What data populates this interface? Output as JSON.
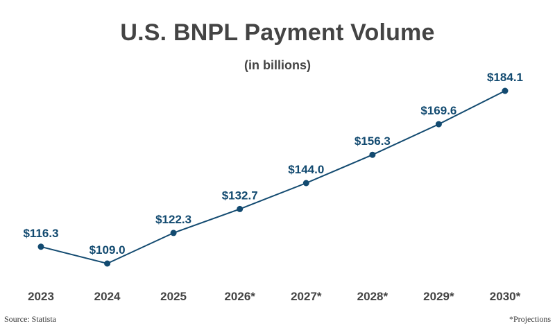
{
  "colors": {
    "line": "#124a70",
    "value_label": "#124a70",
    "tick_label": "#444444",
    "title": "#444444"
  },
  "footer": {
    "source": "Source: Statista",
    "note": "*Projections"
  },
  "chart_data": {
    "type": "line",
    "title": "U.S. BNPL Payment Volume",
    "subtitle": "(in billions)",
    "xlabel": "",
    "ylabel": "",
    "categories": [
      "2023",
      "2024",
      "2025",
      "2026*",
      "2027*",
      "2028*",
      "2029*",
      "2030*"
    ],
    "series": [
      {
        "values": [
          116.3,
          109.0,
          122.3,
          132.7,
          144.0,
          156.3,
          169.6,
          184.1
        ],
        "labels": [
          "$116.3",
          "$109.0",
          "$122.3",
          "$132.7",
          "$144.0",
          "$156.3",
          "$169.6",
          "$184.1"
        ]
      }
    ],
    "grid": false,
    "legend": "none",
    "markers": true
  }
}
